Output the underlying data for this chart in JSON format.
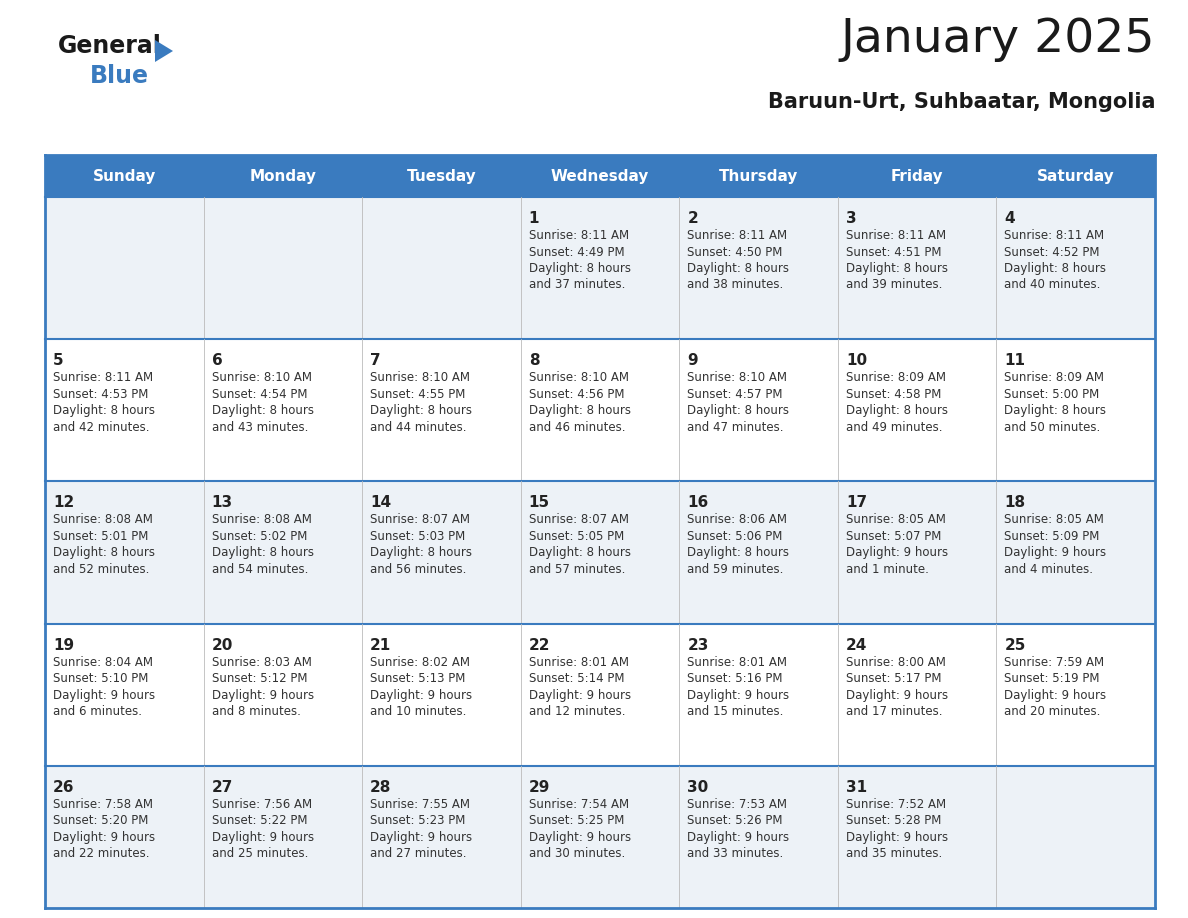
{
  "title": "January 2025",
  "subtitle": "Baruun-Urt, Suhbaatar, Mongolia",
  "header_bg": "#3a7bbf",
  "header_text": "#ffffff",
  "day_names": [
    "Sunday",
    "Monday",
    "Tuesday",
    "Wednesday",
    "Thursday",
    "Friday",
    "Saturday"
  ],
  "row_bg_odd": "#edf2f7",
  "row_bg_even": "#ffffff",
  "grid_line_color": "#3a7bbf",
  "date_color": "#222222",
  "text_color": "#333333",
  "calendar": [
    [
      {
        "day": null,
        "sunrise": null,
        "sunset": null,
        "daylight": null
      },
      {
        "day": null,
        "sunrise": null,
        "sunset": null,
        "daylight": null
      },
      {
        "day": null,
        "sunrise": null,
        "sunset": null,
        "daylight": null
      },
      {
        "day": "1",
        "sunrise": "8:11 AM",
        "sunset": "4:49 PM",
        "daylight": "8 hours\nand 37 minutes."
      },
      {
        "day": "2",
        "sunrise": "8:11 AM",
        "sunset": "4:50 PM",
        "daylight": "8 hours\nand 38 minutes."
      },
      {
        "day": "3",
        "sunrise": "8:11 AM",
        "sunset": "4:51 PM",
        "daylight": "8 hours\nand 39 minutes."
      },
      {
        "day": "4",
        "sunrise": "8:11 AM",
        "sunset": "4:52 PM",
        "daylight": "8 hours\nand 40 minutes."
      }
    ],
    [
      {
        "day": "5",
        "sunrise": "8:11 AM",
        "sunset": "4:53 PM",
        "daylight": "8 hours\nand 42 minutes."
      },
      {
        "day": "6",
        "sunrise": "8:10 AM",
        "sunset": "4:54 PM",
        "daylight": "8 hours\nand 43 minutes."
      },
      {
        "day": "7",
        "sunrise": "8:10 AM",
        "sunset": "4:55 PM",
        "daylight": "8 hours\nand 44 minutes."
      },
      {
        "day": "8",
        "sunrise": "8:10 AM",
        "sunset": "4:56 PM",
        "daylight": "8 hours\nand 46 minutes."
      },
      {
        "day": "9",
        "sunrise": "8:10 AM",
        "sunset": "4:57 PM",
        "daylight": "8 hours\nand 47 minutes."
      },
      {
        "day": "10",
        "sunrise": "8:09 AM",
        "sunset": "4:58 PM",
        "daylight": "8 hours\nand 49 minutes."
      },
      {
        "day": "11",
        "sunrise": "8:09 AM",
        "sunset": "5:00 PM",
        "daylight": "8 hours\nand 50 minutes."
      }
    ],
    [
      {
        "day": "12",
        "sunrise": "8:08 AM",
        "sunset": "5:01 PM",
        "daylight": "8 hours\nand 52 minutes."
      },
      {
        "day": "13",
        "sunrise": "8:08 AM",
        "sunset": "5:02 PM",
        "daylight": "8 hours\nand 54 minutes."
      },
      {
        "day": "14",
        "sunrise": "8:07 AM",
        "sunset": "5:03 PM",
        "daylight": "8 hours\nand 56 minutes."
      },
      {
        "day": "15",
        "sunrise": "8:07 AM",
        "sunset": "5:05 PM",
        "daylight": "8 hours\nand 57 minutes."
      },
      {
        "day": "16",
        "sunrise": "8:06 AM",
        "sunset": "5:06 PM",
        "daylight": "8 hours\nand 59 minutes."
      },
      {
        "day": "17",
        "sunrise": "8:05 AM",
        "sunset": "5:07 PM",
        "daylight": "9 hours\nand 1 minute."
      },
      {
        "day": "18",
        "sunrise": "8:05 AM",
        "sunset": "5:09 PM",
        "daylight": "9 hours\nand 4 minutes."
      }
    ],
    [
      {
        "day": "19",
        "sunrise": "8:04 AM",
        "sunset": "5:10 PM",
        "daylight": "9 hours\nand 6 minutes."
      },
      {
        "day": "20",
        "sunrise": "8:03 AM",
        "sunset": "5:12 PM",
        "daylight": "9 hours\nand 8 minutes."
      },
      {
        "day": "21",
        "sunrise": "8:02 AM",
        "sunset": "5:13 PM",
        "daylight": "9 hours\nand 10 minutes."
      },
      {
        "day": "22",
        "sunrise": "8:01 AM",
        "sunset": "5:14 PM",
        "daylight": "9 hours\nand 12 minutes."
      },
      {
        "day": "23",
        "sunrise": "8:01 AM",
        "sunset": "5:16 PM",
        "daylight": "9 hours\nand 15 minutes."
      },
      {
        "day": "24",
        "sunrise": "8:00 AM",
        "sunset": "5:17 PM",
        "daylight": "9 hours\nand 17 minutes."
      },
      {
        "day": "25",
        "sunrise": "7:59 AM",
        "sunset": "5:19 PM",
        "daylight": "9 hours\nand 20 minutes."
      }
    ],
    [
      {
        "day": "26",
        "sunrise": "7:58 AM",
        "sunset": "5:20 PM",
        "daylight": "9 hours\nand 22 minutes."
      },
      {
        "day": "27",
        "sunrise": "7:56 AM",
        "sunset": "5:22 PM",
        "daylight": "9 hours\nand 25 minutes."
      },
      {
        "day": "28",
        "sunrise": "7:55 AM",
        "sunset": "5:23 PM",
        "daylight": "9 hours\nand 27 minutes."
      },
      {
        "day": "29",
        "sunrise": "7:54 AM",
        "sunset": "5:25 PM",
        "daylight": "9 hours\nand 30 minutes."
      },
      {
        "day": "30",
        "sunrise": "7:53 AM",
        "sunset": "5:26 PM",
        "daylight": "9 hours\nand 33 minutes."
      },
      {
        "day": "31",
        "sunrise": "7:52 AM",
        "sunset": "5:28 PM",
        "daylight": "9 hours\nand 35 minutes."
      },
      {
        "day": null,
        "sunrise": null,
        "sunset": null,
        "daylight": null
      }
    ]
  ]
}
